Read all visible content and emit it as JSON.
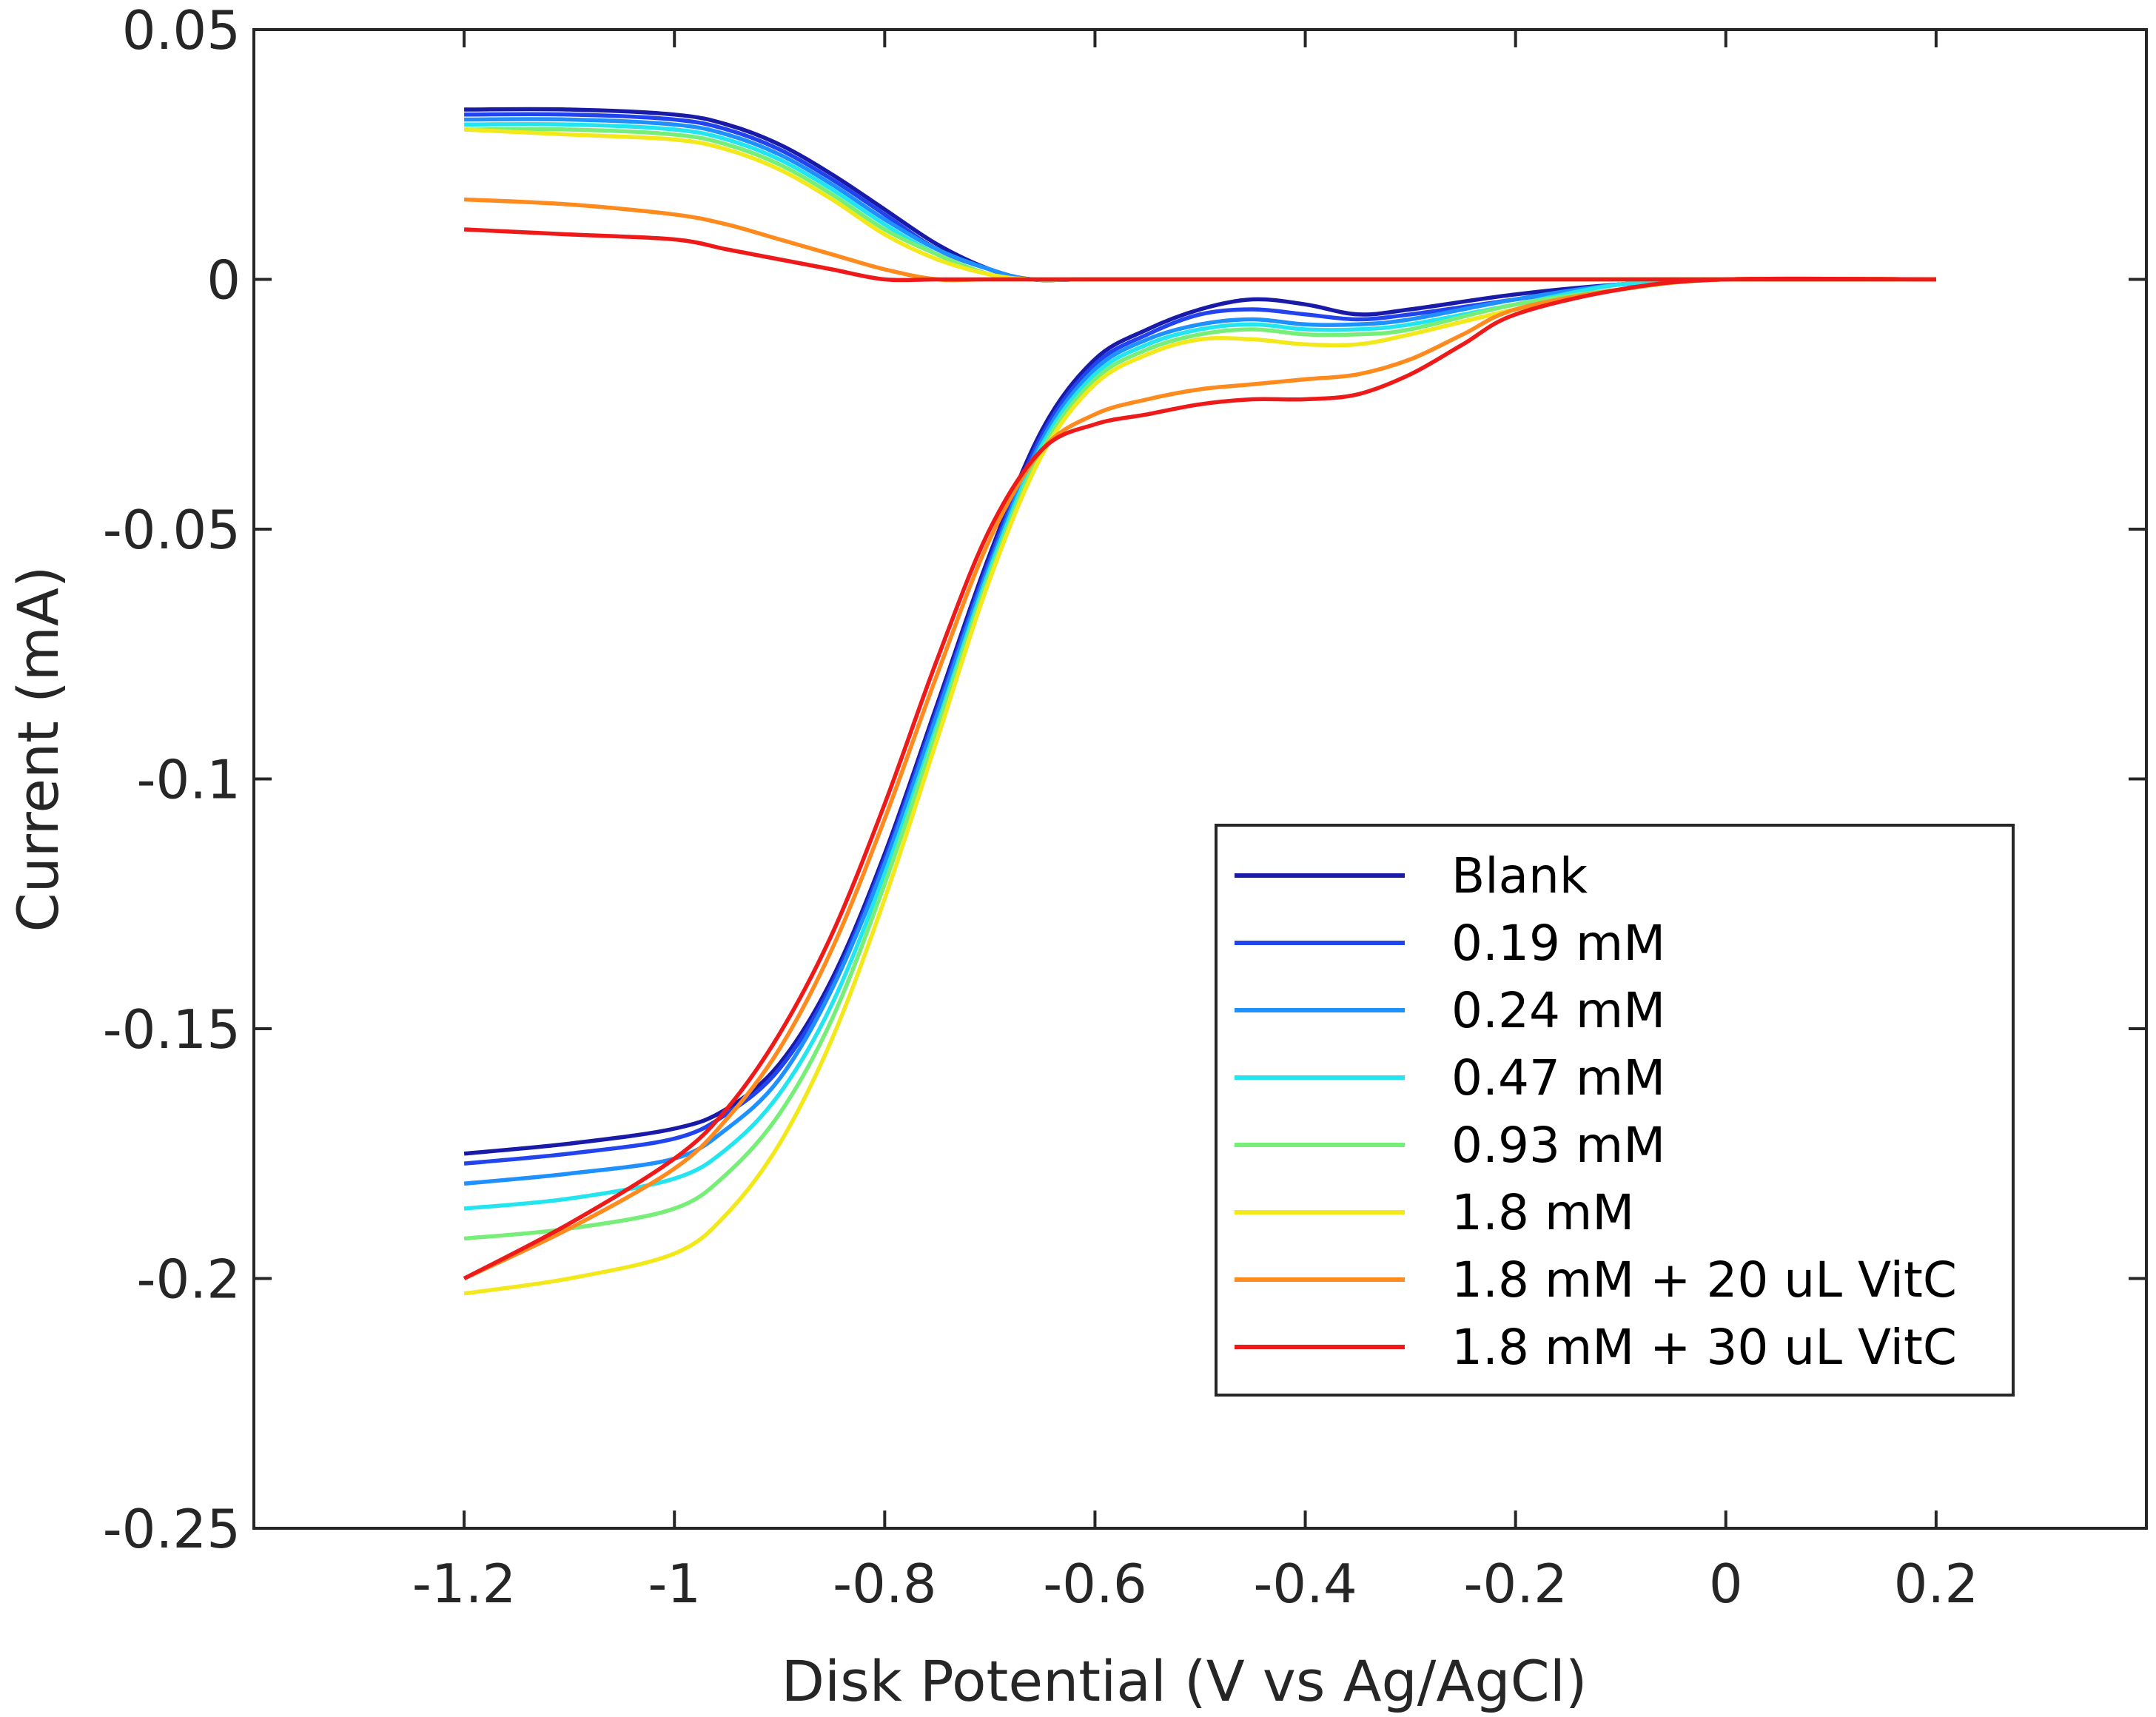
{
  "chart_data": {
    "type": "line",
    "xlabel": "Disk Potential (V vs Ag/AgCl)",
    "ylabel": "Current (mA)",
    "xlim": [
      -1.4,
      0.4
    ],
    "ylim": [
      -0.25,
      0.05
    ],
    "grid": false,
    "legend_position": "lower-right",
    "x_ticks": [
      {
        "value": -1.2,
        "label": "-1.2"
      },
      {
        "value": -1.0,
        "label": "-1"
      },
      {
        "value": -0.8,
        "label": "-0.8"
      },
      {
        "value": -0.6,
        "label": "-0.6"
      },
      {
        "value": -0.4,
        "label": "-0.4"
      },
      {
        "value": -0.2,
        "label": "-0.2"
      },
      {
        "value": 0.0,
        "label": "0"
      },
      {
        "value": 0.2,
        "label": "0.2"
      }
    ],
    "y_ticks": [
      {
        "value": 0.05,
        "label": "0.05"
      },
      {
        "value": 0.0,
        "label": "0"
      },
      {
        "value": -0.05,
        "label": "-0.05"
      },
      {
        "value": -0.1,
        "label": "-0.1"
      },
      {
        "value": -0.15,
        "label": "-0.15"
      },
      {
        "value": -0.2,
        "label": "-0.2"
      },
      {
        "value": -0.25,
        "label": "-0.25"
      }
    ],
    "series": [
      {
        "name": "Blank",
        "color": "#1a1aa8",
        "ring": [
          [
            -1.2,
            0.034
          ],
          [
            -1.1,
            0.034
          ],
          [
            -1.0,
            0.033
          ],
          [
            -0.95,
            0.031
          ],
          [
            -0.9,
            0.027
          ],
          [
            -0.85,
            0.021
          ],
          [
            -0.8,
            0.014
          ],
          [
            -0.75,
            0.007
          ],
          [
            -0.7,
            0.002
          ],
          [
            -0.66,
            0.0
          ],
          [
            -0.6,
            0.0
          ],
          [
            -0.4,
            0.0
          ],
          [
            -0.2,
            0.0
          ],
          [
            0.0,
            0.0
          ],
          [
            0.2,
            0.0
          ]
        ],
        "disk": [
          [
            -1.2,
            -0.175
          ],
          [
            -1.1,
            -0.173
          ],
          [
            -1.0,
            -0.17
          ],
          [
            -0.95,
            -0.166
          ],
          [
            -0.9,
            -0.157
          ],
          [
            -0.85,
            -0.14
          ],
          [
            -0.8,
            -0.115
          ],
          [
            -0.75,
            -0.085
          ],
          [
            -0.7,
            -0.055
          ],
          [
            -0.65,
            -0.03
          ],
          [
            -0.6,
            -0.016
          ],
          [
            -0.55,
            -0.01
          ],
          [
            -0.5,
            -0.006
          ],
          [
            -0.45,
            -0.004
          ],
          [
            -0.4,
            -0.005
          ],
          [
            -0.35,
            -0.007
          ],
          [
            -0.3,
            -0.006
          ],
          [
            -0.2,
            -0.003
          ],
          [
            -0.1,
            -0.001
          ],
          [
            0.0,
            0.0
          ],
          [
            0.2,
            0.0
          ]
        ]
      },
      {
        "name": "0.19 mM",
        "color": "#2244ee",
        "ring": [
          [
            -1.2,
            0.033
          ],
          [
            -1.1,
            0.033
          ],
          [
            -1.0,
            0.032
          ],
          [
            -0.95,
            0.03
          ],
          [
            -0.9,
            0.026
          ],
          [
            -0.85,
            0.02
          ],
          [
            -0.8,
            0.013
          ],
          [
            -0.75,
            0.006
          ],
          [
            -0.7,
            0.002
          ],
          [
            -0.66,
            0.0
          ],
          [
            -0.6,
            0.0
          ],
          [
            -0.4,
            0.0
          ],
          [
            -0.2,
            0.0
          ],
          [
            0.0,
            0.0
          ],
          [
            0.2,
            0.0
          ]
        ],
        "disk": [
          [
            -1.2,
            -0.177
          ],
          [
            -1.1,
            -0.175
          ],
          [
            -1.0,
            -0.172
          ],
          [
            -0.95,
            -0.167
          ],
          [
            -0.9,
            -0.158
          ],
          [
            -0.85,
            -0.141
          ],
          [
            -0.8,
            -0.116
          ],
          [
            -0.75,
            -0.086
          ],
          [
            -0.7,
            -0.056
          ],
          [
            -0.65,
            -0.031
          ],
          [
            -0.6,
            -0.017
          ],
          [
            -0.55,
            -0.011
          ],
          [
            -0.5,
            -0.007
          ],
          [
            -0.45,
            -0.006
          ],
          [
            -0.4,
            -0.007
          ],
          [
            -0.35,
            -0.008
          ],
          [
            -0.3,
            -0.007
          ],
          [
            -0.2,
            -0.004
          ],
          [
            -0.1,
            -0.001
          ],
          [
            0.0,
            0.0
          ],
          [
            0.2,
            0.0
          ]
        ]
      },
      {
        "name": "0.24 mM",
        "color": "#1e90ff",
        "ring": [
          [
            -1.2,
            0.032
          ],
          [
            -1.1,
            0.032
          ],
          [
            -1.0,
            0.031
          ],
          [
            -0.95,
            0.029
          ],
          [
            -0.9,
            0.025
          ],
          [
            -0.85,
            0.019
          ],
          [
            -0.8,
            0.012
          ],
          [
            -0.75,
            0.006
          ],
          [
            -0.7,
            0.002
          ],
          [
            -0.66,
            0.0
          ],
          [
            -0.6,
            0.0
          ],
          [
            -0.4,
            0.0
          ],
          [
            -0.2,
            0.0
          ],
          [
            0.0,
            0.0
          ],
          [
            0.2,
            0.0
          ]
        ],
        "disk": [
          [
            -1.2,
            -0.181
          ],
          [
            -1.1,
            -0.179
          ],
          [
            -1.0,
            -0.176
          ],
          [
            -0.95,
            -0.17
          ],
          [
            -0.9,
            -0.16
          ],
          [
            -0.85,
            -0.142
          ],
          [
            -0.8,
            -0.117
          ],
          [
            -0.75,
            -0.087
          ],
          [
            -0.7,
            -0.057
          ],
          [
            -0.65,
            -0.032
          ],
          [
            -0.6,
            -0.018
          ],
          [
            -0.55,
            -0.012
          ],
          [
            -0.5,
            -0.009
          ],
          [
            -0.45,
            -0.008
          ],
          [
            -0.4,
            -0.009
          ],
          [
            -0.35,
            -0.009
          ],
          [
            -0.3,
            -0.008
          ],
          [
            -0.2,
            -0.004
          ],
          [
            -0.1,
            -0.001
          ],
          [
            0.0,
            0.0
          ],
          [
            0.2,
            0.0
          ]
        ]
      },
      {
        "name": "0.47 mM",
        "color": "#22e5f0",
        "ring": [
          [
            -1.2,
            0.031
          ],
          [
            -1.1,
            0.031
          ],
          [
            -1.0,
            0.03
          ],
          [
            -0.95,
            0.028
          ],
          [
            -0.9,
            0.024
          ],
          [
            -0.85,
            0.018
          ],
          [
            -0.8,
            0.011
          ],
          [
            -0.75,
            0.005
          ],
          [
            -0.7,
            0.001
          ],
          [
            -0.66,
            0.0
          ],
          [
            -0.6,
            0.0
          ],
          [
            -0.4,
            0.0
          ],
          [
            -0.2,
            0.0
          ],
          [
            0.0,
            0.0
          ],
          [
            0.2,
            0.0
          ]
        ],
        "disk": [
          [
            -1.2,
            -0.186
          ],
          [
            -1.1,
            -0.184
          ],
          [
            -1.0,
            -0.18
          ],
          [
            -0.95,
            -0.174
          ],
          [
            -0.9,
            -0.163
          ],
          [
            -0.85,
            -0.145
          ],
          [
            -0.8,
            -0.119
          ],
          [
            -0.75,
            -0.089
          ],
          [
            -0.7,
            -0.058
          ],
          [
            -0.65,
            -0.033
          ],
          [
            -0.6,
            -0.019
          ],
          [
            -0.55,
            -0.013
          ],
          [
            -0.5,
            -0.01
          ],
          [
            -0.45,
            -0.009
          ],
          [
            -0.4,
            -0.01
          ],
          [
            -0.35,
            -0.01
          ],
          [
            -0.3,
            -0.009
          ],
          [
            -0.2,
            -0.005
          ],
          [
            -0.1,
            -0.001
          ],
          [
            0.0,
            0.0
          ],
          [
            0.2,
            0.0
          ]
        ]
      },
      {
        "name": "0.93 mM",
        "color": "#77ee77",
        "ring": [
          [
            -1.2,
            0.03
          ],
          [
            -1.1,
            0.03
          ],
          [
            -1.0,
            0.029
          ],
          [
            -0.95,
            0.027
          ],
          [
            -0.9,
            0.023
          ],
          [
            -0.85,
            0.017
          ],
          [
            -0.8,
            0.01
          ],
          [
            -0.75,
            0.005
          ],
          [
            -0.7,
            0.001
          ],
          [
            -0.66,
            0.0
          ],
          [
            -0.6,
            0.0
          ],
          [
            -0.4,
            0.0
          ],
          [
            -0.2,
            0.0
          ],
          [
            0.0,
            0.0
          ],
          [
            0.2,
            0.0
          ]
        ],
        "disk": [
          [
            -1.2,
            -0.192
          ],
          [
            -1.1,
            -0.19
          ],
          [
            -1.0,
            -0.186
          ],
          [
            -0.95,
            -0.179
          ],
          [
            -0.9,
            -0.167
          ],
          [
            -0.85,
            -0.148
          ],
          [
            -0.8,
            -0.121
          ],
          [
            -0.75,
            -0.09
          ],
          [
            -0.7,
            -0.059
          ],
          [
            -0.65,
            -0.034
          ],
          [
            -0.6,
            -0.02
          ],
          [
            -0.55,
            -0.014
          ],
          [
            -0.5,
            -0.011
          ],
          [
            -0.45,
            -0.01
          ],
          [
            -0.4,
            -0.011
          ],
          [
            -0.35,
            -0.011
          ],
          [
            -0.3,
            -0.01
          ],
          [
            -0.2,
            -0.005
          ],
          [
            -0.1,
            -0.002
          ],
          [
            0.0,
            0.0
          ],
          [
            0.2,
            0.0
          ]
        ]
      },
      {
        "name": "1.8 mM",
        "color": "#f2e81a",
        "ring": [
          [
            -1.2,
            0.03
          ],
          [
            -1.1,
            0.029
          ],
          [
            -1.0,
            0.028
          ],
          [
            -0.95,
            0.026
          ],
          [
            -0.9,
            0.022
          ],
          [
            -0.85,
            0.016
          ],
          [
            -0.8,
            0.009
          ],
          [
            -0.75,
            0.004
          ],
          [
            -0.7,
            0.001
          ],
          [
            -0.66,
            0.0
          ],
          [
            -0.6,
            0.0
          ],
          [
            -0.4,
            0.0
          ],
          [
            -0.2,
            0.0
          ],
          [
            0.0,
            0.0
          ],
          [
            0.2,
            0.0
          ]
        ],
        "disk": [
          [
            -1.2,
            -0.203
          ],
          [
            -1.1,
            -0.2
          ],
          [
            -1.0,
            -0.195
          ],
          [
            -0.95,
            -0.187
          ],
          [
            -0.9,
            -0.173
          ],
          [
            -0.85,
            -0.152
          ],
          [
            -0.8,
            -0.124
          ],
          [
            -0.75,
            -0.092
          ],
          [
            -0.7,
            -0.06
          ],
          [
            -0.65,
            -0.035
          ],
          [
            -0.6,
            -0.021
          ],
          [
            -0.55,
            -0.015
          ],
          [
            -0.5,
            -0.012
          ],
          [
            -0.45,
            -0.012
          ],
          [
            -0.4,
            -0.013
          ],
          [
            -0.35,
            -0.013
          ],
          [
            -0.3,
            -0.011
          ],
          [
            -0.2,
            -0.006
          ],
          [
            -0.1,
            -0.002
          ],
          [
            0.0,
            0.0
          ],
          [
            0.2,
            0.0
          ]
        ]
      },
      {
        "name": "1.8 mM + 20 uL VitC",
        "color": "#ff8a1e",
        "ring": [
          [
            -1.2,
            0.016
          ],
          [
            -1.1,
            0.015
          ],
          [
            -1.0,
            0.013
          ],
          [
            -0.95,
            0.011
          ],
          [
            -0.9,
            0.008
          ],
          [
            -0.85,
            0.005
          ],
          [
            -0.8,
            0.002
          ],
          [
            -0.75,
            0.0
          ],
          [
            -0.7,
            0.0
          ],
          [
            -0.6,
            0.0
          ],
          [
            -0.4,
            0.0
          ],
          [
            -0.2,
            0.0
          ],
          [
            0.0,
            0.0
          ],
          [
            0.2,
            0.0
          ]
        ],
        "disk": [
          [
            -1.2,
            -0.2
          ],
          [
            -1.1,
            -0.19
          ],
          [
            -1.0,
            -0.178
          ],
          [
            -0.95,
            -0.168
          ],
          [
            -0.9,
            -0.154
          ],
          [
            -0.85,
            -0.134
          ],
          [
            -0.8,
            -0.108
          ],
          [
            -0.75,
            -0.079
          ],
          [
            -0.7,
            -0.052
          ],
          [
            -0.65,
            -0.034
          ],
          [
            -0.6,
            -0.027
          ],
          [
            -0.55,
            -0.024
          ],
          [
            -0.5,
            -0.022
          ],
          [
            -0.45,
            -0.021
          ],
          [
            -0.4,
            -0.02
          ],
          [
            -0.35,
            -0.019
          ],
          [
            -0.3,
            -0.016
          ],
          [
            -0.25,
            -0.011
          ],
          [
            -0.2,
            -0.006
          ],
          [
            -0.1,
            -0.002
          ],
          [
            0.0,
            0.0
          ],
          [
            0.2,
            0.0
          ]
        ]
      },
      {
        "name": "1.8 mM + 30 uL VitC",
        "color": "#ee1a1a",
        "ring": [
          [
            -1.2,
            0.01
          ],
          [
            -1.1,
            0.009
          ],
          [
            -1.0,
            0.008
          ],
          [
            -0.95,
            0.006
          ],
          [
            -0.9,
            0.004
          ],
          [
            -0.85,
            0.002
          ],
          [
            -0.8,
            0.0
          ],
          [
            -0.75,
            0.0
          ],
          [
            -0.7,
            0.0
          ],
          [
            -0.6,
            0.0
          ],
          [
            -0.4,
            0.0
          ],
          [
            -0.2,
            0.0
          ],
          [
            0.0,
            0.0
          ],
          [
            0.2,
            0.0
          ]
        ],
        "disk": [
          [
            -1.2,
            -0.2
          ],
          [
            -1.1,
            -0.189
          ],
          [
            -1.0,
            -0.176
          ],
          [
            -0.95,
            -0.166
          ],
          [
            -0.9,
            -0.151
          ],
          [
            -0.85,
            -0.131
          ],
          [
            -0.8,
            -0.105
          ],
          [
            -0.75,
            -0.076
          ],
          [
            -0.7,
            -0.05
          ],
          [
            -0.65,
            -0.034
          ],
          [
            -0.6,
            -0.029
          ],
          [
            -0.55,
            -0.027
          ],
          [
            -0.5,
            -0.025
          ],
          [
            -0.45,
            -0.024
          ],
          [
            -0.4,
            -0.024
          ],
          [
            -0.35,
            -0.023
          ],
          [
            -0.3,
            -0.019
          ],
          [
            -0.25,
            -0.013
          ],
          [
            -0.2,
            -0.007
          ],
          [
            -0.1,
            -0.002
          ],
          [
            0.0,
            0.0
          ],
          [
            0.2,
            0.0
          ]
        ]
      }
    ]
  }
}
